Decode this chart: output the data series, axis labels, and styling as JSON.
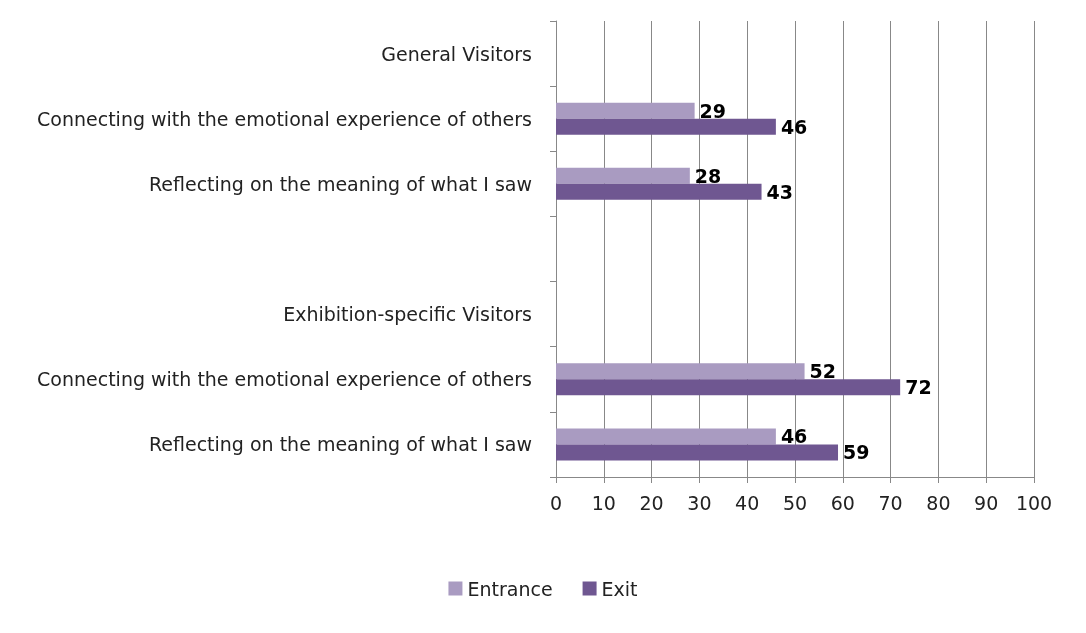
{
  "chart_data": {
    "type": "bar",
    "orientation": "horizontal",
    "categories": [
      "General Visitors",
      "Connecting with the emotional experience of others",
      "Reflecting on the meaning of what I saw",
      null,
      "Exhibition-specific Visitors",
      "Connecting with the emotional experience of others",
      "Reflecting on the meaning of what I saw"
    ],
    "series": [
      {
        "name": "Entrance",
        "color": "#a99bc1",
        "values": [
          null,
          29,
          28,
          null,
          null,
          52,
          46
        ]
      },
      {
        "name": "Exit",
        "color": "#6f5791",
        "values": [
          null,
          46,
          43,
          null,
          null,
          72,
          59
        ]
      }
    ],
    "xlim": [
      0,
      100
    ],
    "xticks": [
      0,
      10,
      20,
      30,
      40,
      50,
      60,
      70,
      80,
      90,
      100
    ],
    "grid": "x",
    "legend": "bottom",
    "data_labels": true
  }
}
